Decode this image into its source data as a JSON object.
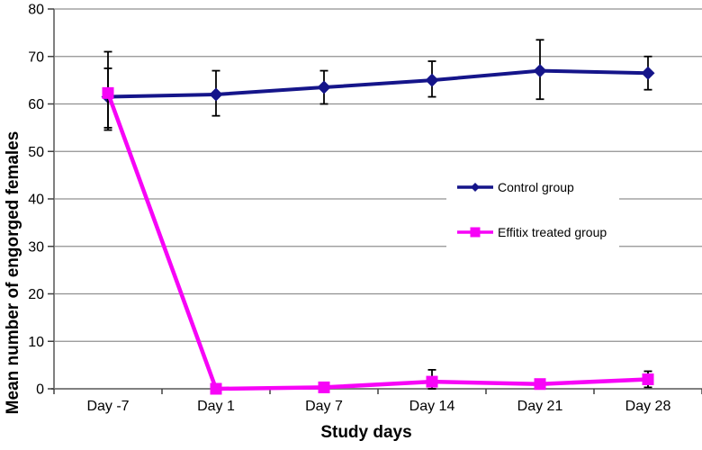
{
  "chart_data": {
    "type": "line",
    "title": "",
    "xlabel": "Study days",
    "ylabel": "Mean number of engorged females",
    "categories": [
      "Day -7",
      "Day 1",
      "Day 7",
      "Day 14",
      "Day 21",
      "Day 28"
    ],
    "ylim": [
      0,
      80
    ],
    "ytick_step": 10,
    "yticks": [
      0,
      10,
      20,
      30,
      40,
      50,
      60,
      70,
      80
    ],
    "grid": "horizontal",
    "legend_position": "center-right",
    "series": [
      {
        "name": "Control group",
        "color": "#15158a",
        "marker": "diamond",
        "line_width": 4,
        "values": [
          61.5,
          62,
          63.5,
          65,
          67,
          66.5
        ],
        "err_lo": [
          55,
          57.5,
          60,
          61.5,
          61,
          63
        ],
        "err_hi": [
          67.5,
          67,
          67,
          69,
          73.5,
          70
        ]
      },
      {
        "name": "Effitix treated group",
        "color": "#f704f7",
        "marker": "square",
        "line_width": 4.5,
        "values": [
          62.3,
          0,
          0.3,
          1.5,
          1,
          2
        ],
        "err_lo": [
          54.5,
          null,
          null,
          0,
          null,
          0.3
        ],
        "err_hi": [
          71,
          null,
          null,
          4,
          null,
          3.7
        ]
      }
    ]
  },
  "styles": {
    "background": "#ffffff",
    "grid_color": "#909090",
    "axis_color": "#808080",
    "tick_color": "#404040",
    "error_bar_color": "#000000",
    "text_color": "#000000",
    "legend_fill": "#ffffff"
  }
}
